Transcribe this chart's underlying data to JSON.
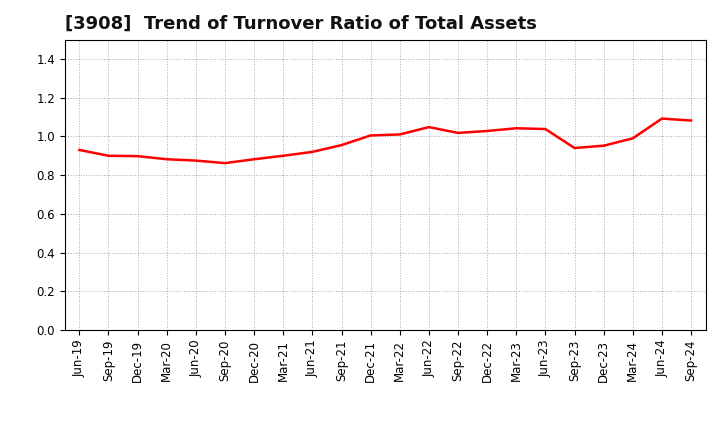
{
  "title": "[3908]  Trend of Turnover Ratio of Total Assets",
  "x_labels": [
    "Jun-19",
    "Sep-19",
    "Dec-19",
    "Mar-20",
    "Jun-20",
    "Sep-20",
    "Dec-20",
    "Mar-21",
    "Jun-21",
    "Sep-21",
    "Dec-21",
    "Mar-22",
    "Jun-22",
    "Sep-22",
    "Dec-22",
    "Mar-23",
    "Jun-23",
    "Sep-23",
    "Dec-23",
    "Mar-24",
    "Jun-24",
    "Sep-24"
  ],
  "y_values": [
    0.93,
    0.9,
    0.898,
    0.882,
    0.875,
    0.862,
    0.882,
    0.9,
    0.92,
    0.955,
    1.005,
    1.01,
    1.048,
    1.018,
    1.028,
    1.042,
    1.038,
    0.94,
    0.952,
    0.99,
    1.092,
    1.082
  ],
  "line_color": "#ff0000",
  "line_width": 1.8,
  "ylim": [
    0.0,
    1.5
  ],
  "yticks": [
    0.0,
    0.2,
    0.4,
    0.6,
    0.8,
    1.0,
    1.2,
    1.4
  ],
  "grid_color": "#aaaaaa",
  "grid_linestyle": ":",
  "grid_linewidth": 0.7,
  "background_color": "#ffffff",
  "plot_bg_color": "#ffffff",
  "title_fontsize": 13,
  "tick_fontsize": 8.5,
  "title_color": "#111111",
  "spine_color": "#000000"
}
